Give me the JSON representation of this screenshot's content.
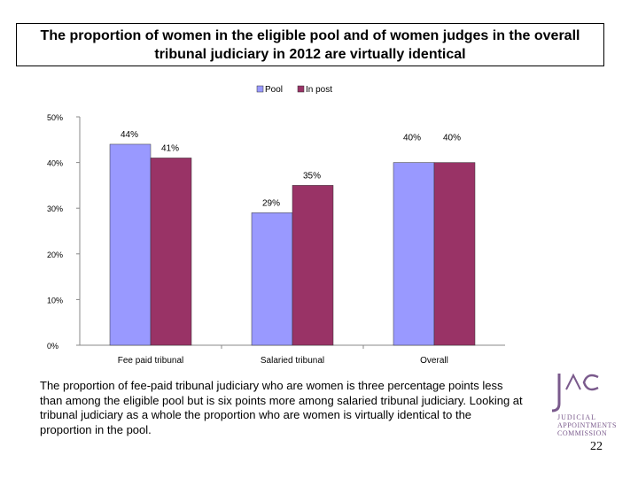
{
  "slide": {
    "title": "The proportion of women in the eligible pool and of women judges in the overall tribunal judiciary in 2012 are virtually identical",
    "caption": "The proportion of fee-paid tribunal judiciary who are women is three percentage points less than among the eligible pool but is six points more among salaried tribunal judiciary. Looking at tribunal judiciary as a whole the proportion who are women is virtually identical to the proportion in the pool.",
    "page_number": "22"
  },
  "logo": {
    "mark": "JAC",
    "line1": "JUDICIAL",
    "line2": "APPOINTMENTS",
    "line3": "COMMISSION"
  },
  "colors": {
    "pool": "#9999ff",
    "in_post": "#993366",
    "axis": "#888888"
  },
  "chart_data": {
    "type": "bar",
    "title": "",
    "categories": [
      "Fee paid tribunal",
      "Salaried tribunal",
      "Overall"
    ],
    "series": [
      {
        "name": "Pool",
        "values": [
          44,
          29,
          40
        ],
        "labels": [
          "44%",
          "29%",
          "40%"
        ]
      },
      {
        "name": "In post",
        "values": [
          41,
          35,
          40
        ],
        "labels": [
          "41%",
          "35%",
          "40%"
        ]
      }
    ],
    "yticks": [
      "0%",
      "10%",
      "20%",
      "30%",
      "40%",
      "50%"
    ],
    "ylim": [
      0,
      50
    ],
    "xlabel": "",
    "ylabel": "",
    "legend_position": "top",
    "grid": false
  }
}
